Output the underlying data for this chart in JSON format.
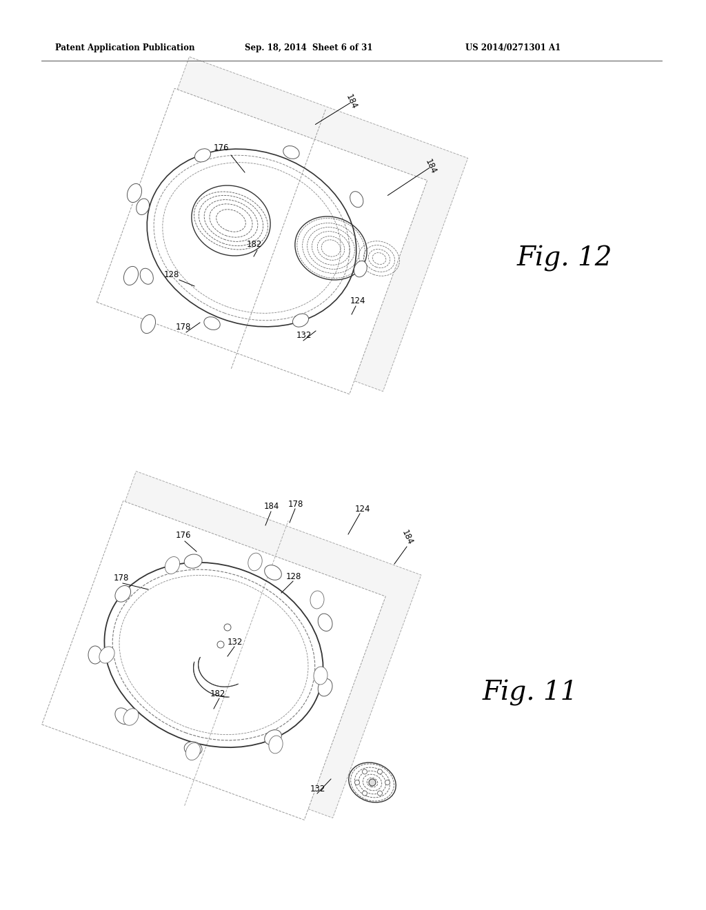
{
  "background_color": "#ffffff",
  "header_text_left": "Patent Application Publication",
  "header_text_mid": "Sep. 18, 2014  Sheet 6 of 31",
  "header_text_right": "US 2014/0271301 A1",
  "fig12_label": "Fig. 12",
  "fig11_label": "Fig. 11",
  "line_color": "#333333",
  "dashed_color": "#777777",
  "bolt_color": "#555555"
}
